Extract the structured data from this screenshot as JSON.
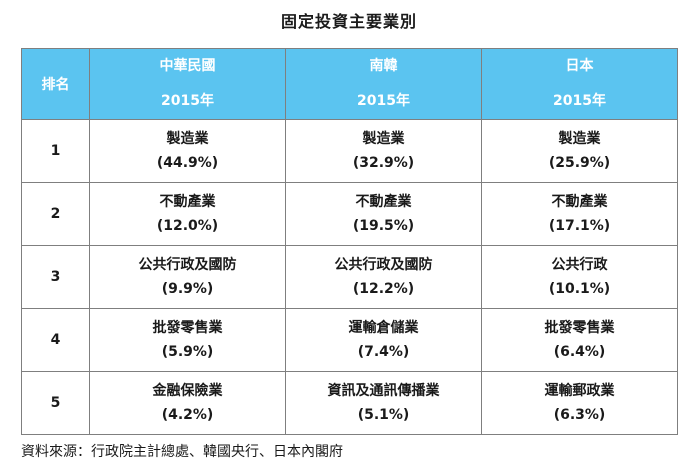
{
  "title": "固定投資主要業別",
  "header": {
    "rank_label": "排名",
    "countries": [
      {
        "name": "中華民國",
        "year": "2015年"
      },
      {
        "name": "南韓",
        "year": "2015年"
      },
      {
        "name": "日本",
        "year": "2015年"
      }
    ]
  },
  "rows": [
    {
      "rank": "1",
      "cells": [
        {
          "industry": "製造業",
          "share": "(44.9%)"
        },
        {
          "industry": "製造業",
          "share": "(32.9%)"
        },
        {
          "industry": "製造業",
          "share": "(25.9%)"
        }
      ]
    },
    {
      "rank": "2",
      "cells": [
        {
          "industry": "不動產業",
          "share": "(12.0%)"
        },
        {
          "industry": "不動產業",
          "share": "(19.5%)"
        },
        {
          "industry": "不動產業",
          "share": "(17.1%)"
        }
      ]
    },
    {
      "rank": "3",
      "cells": [
        {
          "industry": "公共行政及國防",
          "share": "(9.9%)"
        },
        {
          "industry": "公共行政及國防",
          "share": "(12.2%)"
        },
        {
          "industry": "公共行政",
          "share": "(10.1%)"
        }
      ]
    },
    {
      "rank": "4",
      "cells": [
        {
          "industry": "批發零售業",
          "share": "(5.9%)"
        },
        {
          "industry": "運輸倉儲業",
          "share": "(7.4%)"
        },
        {
          "industry": "批發零售業",
          "share": "(6.4%)"
        }
      ]
    },
    {
      "rank": "5",
      "cells": [
        {
          "industry": "金融保險業",
          "share": "(4.2%)"
        },
        {
          "industry": "資訊及通訊傳播業",
          "share": "(5.1%)"
        },
        {
          "industry": "運輸郵政業",
          "share": "(6.3%)"
        }
      ]
    }
  ],
  "source": "資料來源：行政院主計總處、韓國央行、日本內閣府",
  "colors": {
    "header_bg": "#5bc4f0",
    "header_text": "#ffffff",
    "border": "#7f7f7f"
  }
}
